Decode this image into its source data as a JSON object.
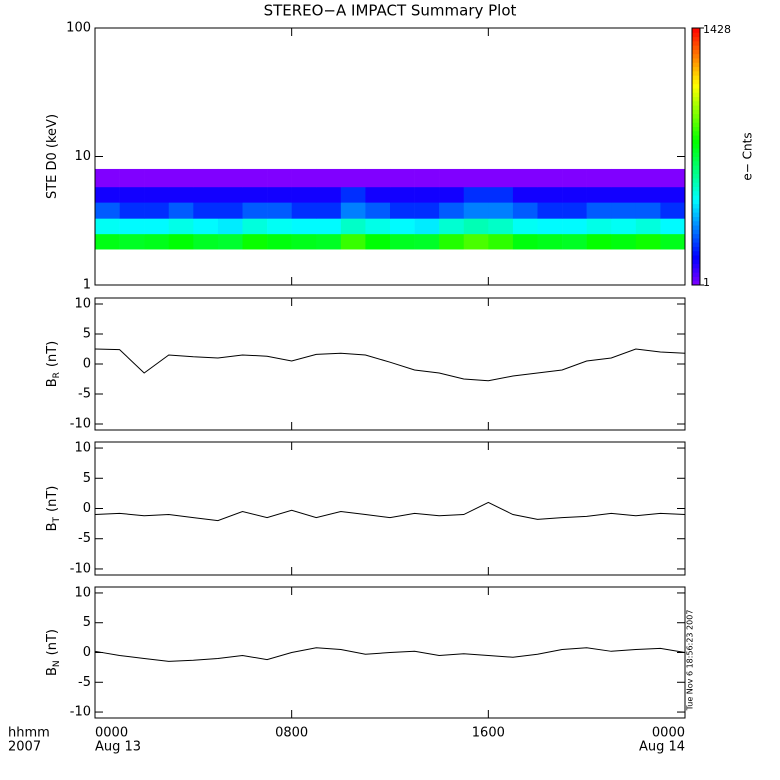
{
  "title": "STEREO−A IMPACT Summary Plot",
  "timestamp": "Tue Nov  6 18:56:23 2007",
  "chart_data": [
    {
      "type": "heatmap",
      "ylabel": "STE D0 (keV)",
      "x": [
        0,
        1,
        2,
        3,
        4,
        5,
        6,
        7,
        8,
        9,
        10,
        11,
        12,
        13,
        14,
        15,
        16,
        17,
        18,
        19,
        20,
        21,
        22,
        23,
        24
      ],
      "y_bins": [
        1.9,
        2.5,
        3.3,
        4.4,
        5.8,
        8.0
      ],
      "values": [
        [
          50,
          45,
          48,
          55,
          45,
          42,
          60,
          52,
          48,
          45,
          80,
          55,
          46,
          44,
          70,
          90,
          75,
          52,
          48,
          45,
          58,
          52,
          62,
          48
        ],
        [
          12,
          11,
          11,
          13,
          11,
          10,
          14,
          12,
          11,
          11,
          16,
          13,
          11,
          10,
          15,
          18,
          16,
          12,
          11,
          11,
          13,
          12,
          14,
          11
        ],
        [
          4,
          3,
          3,
          4,
          3,
          3,
          4,
          4,
          3,
          3,
          5,
          4,
          3,
          3,
          4,
          5,
          5,
          4,
          3,
          3,
          4,
          4,
          4,
          3
        ],
        [
          2,
          2,
          2,
          2,
          2,
          2,
          2,
          2,
          2,
          2,
          3,
          2,
          2,
          2,
          2,
          3,
          3,
          2,
          2,
          2,
          2,
          2,
          2,
          2
        ],
        [
          1,
          1,
          1,
          1,
          1,
          1,
          1,
          1,
          1,
          1,
          1,
          1,
          1,
          1,
          1,
          1,
          1,
          1,
          1,
          1,
          1,
          1,
          1,
          1
        ]
      ],
      "ylim": [
        1,
        100
      ],
      "yticks": [
        1,
        10,
        100
      ],
      "log_y": true,
      "xlim": [
        0,
        24
      ],
      "xticks": [
        0,
        8,
        16,
        24
      ],
      "colorbar": {
        "label": "e− Cnts",
        "zlim": [
          1,
          1428
        ],
        "ticks": [
          1,
          1428
        ],
        "log": true
      }
    },
    {
      "type": "line",
      "ylabel": "B",
      "ylabel_sub": "R",
      "ylabel_unit": "(nT)",
      "color": "#000000",
      "x": [
        0,
        1,
        2,
        3,
        4,
        5,
        6,
        7,
        8,
        9,
        10,
        11,
        12,
        13,
        14,
        15,
        16,
        17,
        18,
        19,
        20,
        21,
        22,
        23,
        24
      ],
      "values": [
        2.5,
        2.4,
        -1.5,
        1.5,
        1.2,
        1.0,
        1.5,
        1.3,
        0.5,
        1.6,
        1.8,
        1.5,
        0.3,
        -1.0,
        -1.5,
        -2.5,
        -2.8,
        -2.0,
        -1.5,
        -1.0,
        0.5,
        1.0,
        2.5,
        2.0,
        1.8
      ],
      "ylim": [
        -11,
        11
      ],
      "yticks": [
        -10,
        -5,
        0,
        5,
        10
      ],
      "xlim": [
        0,
        24
      ],
      "xticks": [
        0,
        8,
        16,
        24
      ]
    },
    {
      "type": "line",
      "ylabel": "B",
      "ylabel_sub": "T",
      "ylabel_unit": "(nT)",
      "color": "#000000",
      "x": [
        0,
        1,
        2,
        3,
        4,
        5,
        6,
        7,
        8,
        9,
        10,
        11,
        12,
        13,
        14,
        15,
        16,
        17,
        18,
        19,
        20,
        21,
        22,
        23,
        24
      ],
      "values": [
        -1.0,
        -0.8,
        -1.2,
        -1.0,
        -1.5,
        -2.0,
        -0.5,
        -1.5,
        -0.3,
        -1.5,
        -0.5,
        -1.0,
        -1.5,
        -0.8,
        -1.2,
        -1.0,
        1.0,
        -1.0,
        -1.8,
        -1.5,
        -1.3,
        -0.8,
        -1.2,
        -0.8,
        -1.0
      ],
      "ylim": [
        -11,
        11
      ],
      "yticks": [
        -10,
        -5,
        0,
        5,
        10
      ],
      "xlim": [
        0,
        24
      ],
      "xticks": [
        0,
        8,
        16,
        24
      ]
    },
    {
      "type": "line",
      "ylabel": "B",
      "ylabel_sub": "N",
      "ylabel_unit": "(nT)",
      "color": "#000000",
      "x": [
        0,
        1,
        2,
        3,
        4,
        5,
        6,
        7,
        8,
        9,
        10,
        11,
        12,
        13,
        14,
        15,
        16,
        17,
        18,
        19,
        20,
        21,
        22,
        23,
        24
      ],
      "values": [
        0.2,
        -0.5,
        -1.0,
        -1.5,
        -1.3,
        -1.0,
        -0.5,
        -1.2,
        0.0,
        0.8,
        0.5,
        -0.3,
        0.0,
        0.2,
        -0.5,
        -0.2,
        -0.5,
        -0.8,
        -0.3,
        0.5,
        0.8,
        0.2,
        0.5,
        0.7,
        0.0
      ],
      "ylim": [
        -11,
        11
      ],
      "yticks": [
        -10,
        -5,
        0,
        5,
        10
      ],
      "xlim": [
        0,
        24
      ],
      "xticks": [
        {
          "value": 0,
          "label": "0000"
        },
        {
          "value": 8,
          "label": "0800"
        },
        {
          "value": 16,
          "label": "1600"
        },
        {
          "value": 24,
          "label": "0000"
        }
      ],
      "date_labels": [
        {
          "value": 0,
          "label": "Aug 13"
        },
        {
          "value": 24,
          "label": "Aug 14"
        }
      ],
      "xlabel": "hhmm",
      "year_label": "2007"
    }
  ]
}
